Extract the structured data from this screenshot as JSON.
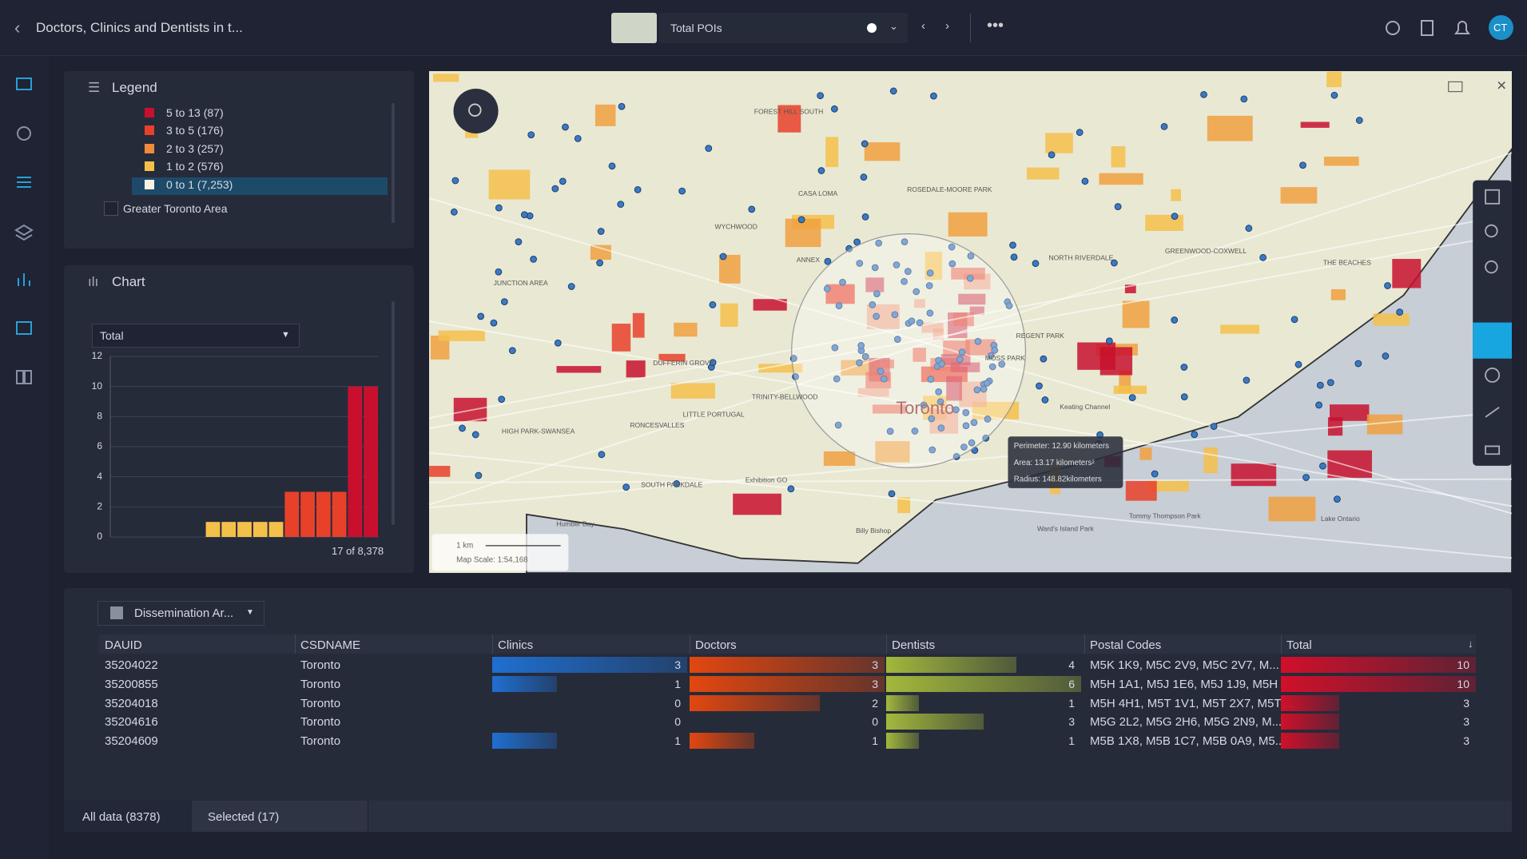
{
  "header": {
    "title": "Doctors, Clinics and Dentists in t...",
    "layer": "Total POIs",
    "avatar": "CT"
  },
  "legend": {
    "title": "Legend",
    "items": [
      {
        "label": "5 to 13 (87)",
        "color": "#c8102e"
      },
      {
        "label": "3 to 5 (176)",
        "color": "#e8412a"
      },
      {
        "label": "2 to 3 (257)",
        "color": "#f08a3c"
      },
      {
        "label": "1 to 2 (576)",
        "color": "#f5c04a"
      },
      {
        "label": "0 to 1 (7,253)",
        "color": "#f7f3e0"
      }
    ],
    "group": "Greater Toronto Area"
  },
  "chart_data": {
    "type": "bar",
    "title": "Chart",
    "selector": "Total",
    "values": [
      0,
      0,
      0,
      0,
      0,
      0,
      1,
      1,
      1,
      1,
      1,
      3,
      3,
      3,
      3,
      10,
      10
    ],
    "colors": [
      "#f5c04a",
      "#f5c04a",
      "#f5c04a",
      "#f5c04a",
      "#f5c04a",
      "#f5c04a",
      "#f5c04a",
      "#f5c04a",
      "#f5c04a",
      "#f5c04a",
      "#f5c04a",
      "#e8412a",
      "#e8412a",
      "#e8412a",
      "#e8412a",
      "#c8102e",
      "#c8102e"
    ],
    "ylim": [
      0,
      12
    ],
    "yticks": [
      0,
      2,
      4,
      6,
      8,
      10,
      12
    ],
    "grid": true,
    "count_label": "17 of 8,378"
  },
  "map": {
    "labels": [
      "Toronto",
      "Humber Bay",
      "Lake Ontario",
      "Exhibition GO",
      "HIGH PARK-SWANSEA",
      "LITTLE PORTUGAL",
      "TRINITY-BELLWOOD",
      "ANNEX",
      "NORTH RIVERDALE",
      "THE BEACHES",
      "GREENWOOD-COXWELL",
      "CASA LOMA",
      "FOREST HILL SOUTH",
      "MOSS PARK",
      "REGENT PARK",
      "ROSEDALE-MOORE PARK",
      "WYCHWOOD",
      "DUFFERIN GROVE",
      "JUNCTION AREA",
      "RONCESVALLES",
      "SOUTH PARKDALE",
      "Tommy Thompson Park",
      "Ward's Island Park",
      "Billy Bishop",
      "Keating Channel"
    ],
    "tooltip": [
      "Perimeter: 12.90 kilometers",
      "Area: 13.17 kilometers²",
      "Radius: 148.82kilometers"
    ],
    "scale": {
      "distance": "1 km",
      "ratio": "Map Scale: 1:54,168"
    }
  },
  "table": {
    "layer": "Dissemination Ar...",
    "columns": [
      {
        "name": "DAUID"
      },
      {
        "name": "CSDNAME"
      },
      {
        "name": "Clinics",
        "color": "#1f6fd0"
      },
      {
        "name": "Doctors",
        "color": "#e2470f"
      },
      {
        "name": "Dentists",
        "color": "#a3b83c"
      },
      {
        "name": "Postal Codes"
      },
      {
        "name": "Total",
        "color": "#d0102a"
      }
    ],
    "rows": [
      [
        "35204022",
        "Toronto",
        3,
        3,
        4,
        "M5K 1K9, M5C 2V9, M5C 2V7, M...",
        10
      ],
      [
        "35200855",
        "Toronto",
        1,
        3,
        6,
        "M5H 1A1, M5J 1E6, M5J 1J9, M5H ...",
        10
      ],
      [
        "35204018",
        "Toronto",
        0,
        2,
        1,
        "M5H 4H1, M5T 1V1, M5T 2X7, M5T ...",
        3
      ],
      [
        "35204616",
        "Toronto",
        0,
        0,
        3,
        "M5G 2L2, M5G 2H6, M5G 2N9, M...",
        3
      ],
      [
        "35204609",
        "Toronto",
        1,
        1,
        1,
        "M5B 1X8, M5B 1C7, M5B 0A9, M5...",
        3
      ]
    ]
  },
  "tabs": [
    "All data (8378)",
    "Selected (17)"
  ]
}
